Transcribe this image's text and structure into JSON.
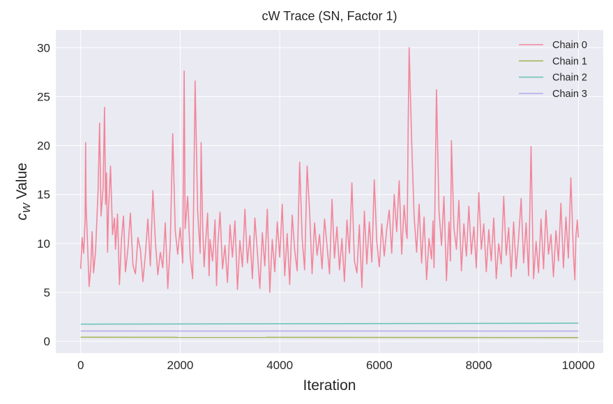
{
  "chart_data": {
    "type": "line",
    "title": "cW Trace (SN, Factor 1)",
    "xlabel": "Iteration",
    "ylabel_main": "c",
    "ylabel_sub": "W",
    "ylabel_rest": " Value",
    "xlim": [
      -500,
      10500
    ],
    "ylim": [
      -1.2,
      31.8
    ],
    "xticks": [
      0,
      2000,
      4000,
      6000,
      8000,
      10000
    ],
    "yticks": [
      0,
      5,
      10,
      15,
      20,
      25,
      30
    ],
    "grid": true,
    "legend_position": "top-right",
    "series": [
      {
        "name": "Chain 0",
        "color": "#f2869a",
        "x": [
          0,
          30,
          60,
          90,
          100,
          110,
          130,
          150,
          170,
          200,
          230,
          260,
          300,
          350,
          380,
          410,
          450,
          480,
          500,
          520,
          540,
          560,
          600,
          640,
          680,
          700,
          740,
          780,
          820,
          860,
          900,
          950,
          1000,
          1050,
          1100,
          1150,
          1200,
          1250,
          1300,
          1350,
          1400,
          1450,
          1500,
          1550,
          1600,
          1650,
          1700,
          1750,
          1800,
          1850,
          1900,
          1950,
          2000,
          2050,
          2080,
          2100,
          2150,
          2200,
          2250,
          2300,
          2350,
          2400,
          2420,
          2450,
          2480,
          2500,
          2550,
          2580,
          2600,
          2650,
          2700,
          2730,
          2760,
          2800,
          2850,
          2900,
          2950,
          3000,
          3050,
          3100,
          3150,
          3200,
          3250,
          3300,
          3350,
          3400,
          3450,
          3500,
          3550,
          3600,
          3650,
          3700,
          3750,
          3800,
          3850,
          3900,
          3950,
          4000,
          4050,
          4100,
          4150,
          4200,
          4250,
          4300,
          4350,
          4400,
          4450,
          4500,
          4550,
          4600,
          4650,
          4700,
          4750,
          4800,
          4850,
          4900,
          4950,
          5000,
          5050,
          5100,
          5150,
          5200,
          5250,
          5300,
          5350,
          5400,
          5450,
          5500,
          5550,
          5600,
          5650,
          5700,
          5750,
          5800,
          5850,
          5900,
          5950,
          6000,
          6050,
          6100,
          6150,
          6200,
          6250,
          6300,
          6350,
          6400,
          6450,
          6500,
          6540,
          6560,
          6580,
          6600,
          6650,
          6700,
          6750,
          6800,
          6850,
          6900,
          6950,
          7000,
          7050,
          7080,
          7100,
          7150,
          7200,
          7250,
          7300,
          7350,
          7400,
          7430,
          7450,
          7500,
          7550,
          7600,
          7650,
          7700,
          7750,
          7800,
          7850,
          7900,
          7950,
          8000,
          8050,
          8100,
          8150,
          8200,
          8250,
          8300,
          8350,
          8400,
          8450,
          8500,
          8550,
          8600,
          8650,
          8700,
          8750,
          8800,
          8850,
          8900,
          8950,
          9000,
          9050,
          9080,
          9100,
          9150,
          9200,
          9250,
          9300,
          9350,
          9400,
          9450,
          9500,
          9550,
          9600,
          9650,
          9700,
          9750,
          9800,
          9850,
          9900,
          9930,
          9950,
          9980,
          10000
        ],
        "y": [
          7.4,
          10.6,
          9.0,
          12.5,
          20.3,
          13.8,
          11.0,
          8.2,
          5.6,
          7.4,
          11.2,
          7.0,
          9.3,
          15.5,
          22.3,
          12.8,
          15.6,
          23.9,
          14.0,
          17.2,
          9.1,
          13.4,
          17.9,
          10.9,
          12.6,
          9.4,
          13.0,
          5.8,
          10.4,
          12.8,
          7.1,
          9.5,
          13.1,
          7.8,
          6.9,
          10.6,
          9.4,
          6.1,
          8.9,
          12.5,
          7.7,
          15.4,
          10.3,
          6.8,
          9.1,
          7.5,
          12.1,
          5.4,
          9.9,
          21.2,
          11.3,
          8.9,
          11.6,
          8.0,
          27.6,
          11.5,
          14.8,
          8.7,
          6.4,
          26.6,
          13.3,
          9.0,
          20.3,
          12.0,
          7.6,
          9.3,
          13.1,
          6.7,
          10.4,
          8.2,
          12.4,
          5.7,
          10.1,
          13.2,
          7.4,
          9.8,
          6.0,
          11.9,
          8.6,
          12.3,
          5.3,
          10.3,
          7.6,
          13.5,
          8.0,
          10.8,
          6.4,
          12.6,
          9.2,
          5.4,
          11.1,
          7.7,
          13.5,
          5.0,
          10.4,
          7.1,
          12.2,
          8.6,
          14.0,
          6.7,
          11.0,
          5.8,
          12.9,
          9.4,
          7.2,
          18.3,
          10.5,
          7.3,
          17.9,
          13.2,
          6.9,
          12.1,
          8.8,
          10.9,
          7.4,
          12.5,
          9.8,
          6.9,
          14.5,
          8.5,
          11.7,
          7.3,
          10.5,
          6.1,
          12.4,
          9.0,
          16.2,
          8.2,
          7.0,
          11.9,
          5.5,
          13.3,
          7.9,
          12.2,
          8.1,
          16.5,
          10.2,
          7.6,
          12.0,
          8.7,
          11.5,
          13.4,
          9.0,
          15.0,
          11.2,
          16.4,
          8.9,
          13.9,
          11.2,
          10.5,
          22.1,
          30.0,
          20.4,
          12.8,
          9.1,
          14.0,
          8.0,
          12.7,
          6.3,
          10.5,
          8.4,
          12.3,
          7.5,
          25.7,
          13.3,
          9.8,
          14.8,
          6.2,
          12.2,
          8.2,
          20.5,
          11.6,
          9.4,
          14.4,
          7.2,
          12.0,
          8.7,
          13.8,
          8.9,
          11.7,
          7.5,
          15.2,
          9.4,
          12.0,
          7.1,
          11.4,
          8.2,
          12.6,
          6.4,
          10.0,
          7.9,
          14.8,
          8.8,
          11.6,
          6.6,
          12.2,
          7.4,
          10.6,
          14.6,
          8.0,
          12.1,
          6.7,
          19.9,
          11.4,
          6.4,
          10.2,
          7.0,
          12.5,
          7.4,
          13.4,
          8.9,
          10.9,
          6.6,
          11.3,
          8.2,
          14.1,
          7.5,
          12.7,
          8.5,
          16.7,
          9.0,
          6.3,
          10.7,
          12.4,
          10.6
        ]
      },
      {
        "name": "Chain 1",
        "color": "#a8b45c",
        "x": [
          0,
          10000
        ],
        "y": [
          0.42,
          0.38
        ]
      },
      {
        "name": "Chain 2",
        "color": "#6ec4b7",
        "x": [
          0,
          10000
        ],
        "y": [
          1.75,
          1.85
        ]
      },
      {
        "name": "Chain 3",
        "color": "#b6aee8",
        "x": [
          0,
          10000
        ],
        "y": [
          1.05,
          1.05
        ]
      }
    ]
  }
}
